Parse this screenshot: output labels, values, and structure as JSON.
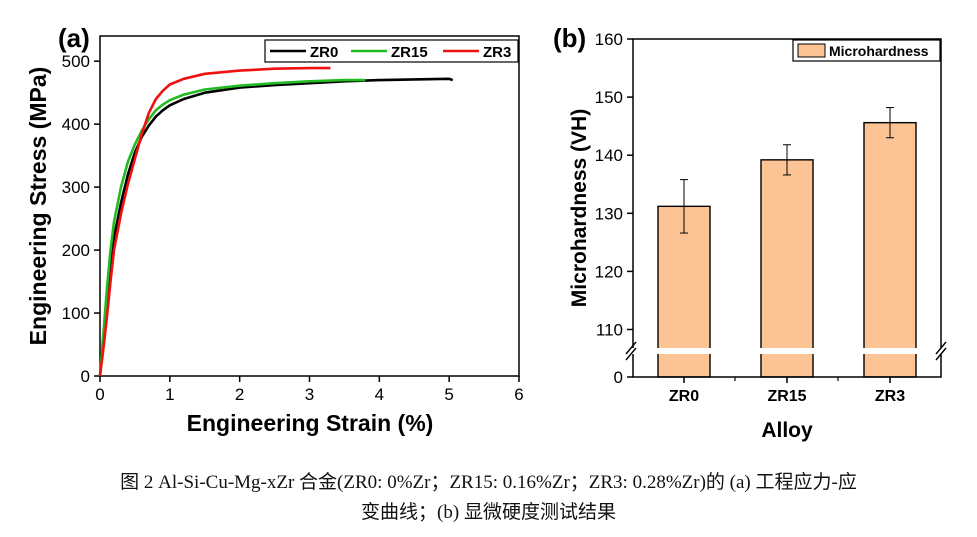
{
  "caption": {
    "line1": "图 2 Al-Si-Cu-Mg-xZr 合金(ZR0: 0%Zr；ZR15: 0.16%Zr；ZR3: 0.28%Zr)的 (a) 工程应力-应",
    "line2": "变曲线；(b) 显微硬度测试结果"
  },
  "chart_data": [
    {
      "type": "line",
      "panel_label": "(a)",
      "xlabel": "Engineering Strain (%)",
      "ylabel": "Engineering Stress (MPa)",
      "xlim": [
        0,
        6
      ],
      "ylim": [
        0,
        540
      ],
      "xticks": [
        0,
        1,
        2,
        3,
        4,
        5,
        6
      ],
      "yticks": [
        0,
        100,
        200,
        300,
        400,
        500
      ],
      "legend_position": "top-right",
      "series": [
        {
          "name": "ZR0",
          "color": "#000000",
          "x": [
            0,
            0.05,
            0.1,
            0.15,
            0.2,
            0.3,
            0.4,
            0.5,
            0.6,
            0.7,
            0.8,
            0.9,
            1.0,
            1.2,
            1.5,
            2.0,
            2.5,
            3.0,
            3.5,
            4.0,
            4.5,
            5.0,
            5.05
          ],
          "y": [
            0,
            60,
            120,
            175,
            220,
            275,
            320,
            355,
            380,
            398,
            412,
            422,
            430,
            440,
            450,
            458,
            462,
            465,
            468,
            470,
            471,
            472,
            470
          ]
        },
        {
          "name": "ZR15",
          "color": "#22bb22",
          "x": [
            0,
            0.05,
            0.1,
            0.15,
            0.2,
            0.3,
            0.4,
            0.5,
            0.6,
            0.7,
            0.8,
            0.9,
            1.0,
            1.2,
            1.5,
            2.0,
            2.5,
            3.0,
            3.5,
            3.8
          ],
          "y": [
            0,
            70,
            140,
            200,
            245,
            300,
            340,
            368,
            390,
            408,
            422,
            431,
            438,
            447,
            455,
            461,
            465,
            468,
            470,
            470
          ]
        },
        {
          "name": "ZR3",
          "color": "#ee1111",
          "x": [
            0,
            0.05,
            0.1,
            0.15,
            0.2,
            0.3,
            0.4,
            0.5,
            0.6,
            0.7,
            0.8,
            0.9,
            1.0,
            1.2,
            1.5,
            2.0,
            2.5,
            3.0,
            3.3
          ],
          "y": [
            0,
            45,
            95,
            150,
            200,
            258,
            305,
            345,
            385,
            418,
            440,
            453,
            463,
            472,
            480,
            485,
            488,
            489,
            489
          ]
        }
      ]
    },
    {
      "type": "bar",
      "panel_label": "(b)",
      "xlabel": "Alloy",
      "ylabel": "Microhardness (VH)",
      "categories": [
        "ZR0",
        "ZR15",
        "ZR3"
      ],
      "legend_position": "top-right",
      "axis_break": true,
      "ylim": [
        104,
        160
      ],
      "yticks": [
        110,
        120,
        130,
        140,
        150,
        160
      ],
      "bottom_tick": "0",
      "bar_color": "#fcc494",
      "series": [
        {
          "name": "Microhardness",
          "values": [
            131.2,
            139.2,
            145.6
          ],
          "errors": [
            4.6,
            2.6,
            2.6
          ]
        }
      ]
    }
  ]
}
